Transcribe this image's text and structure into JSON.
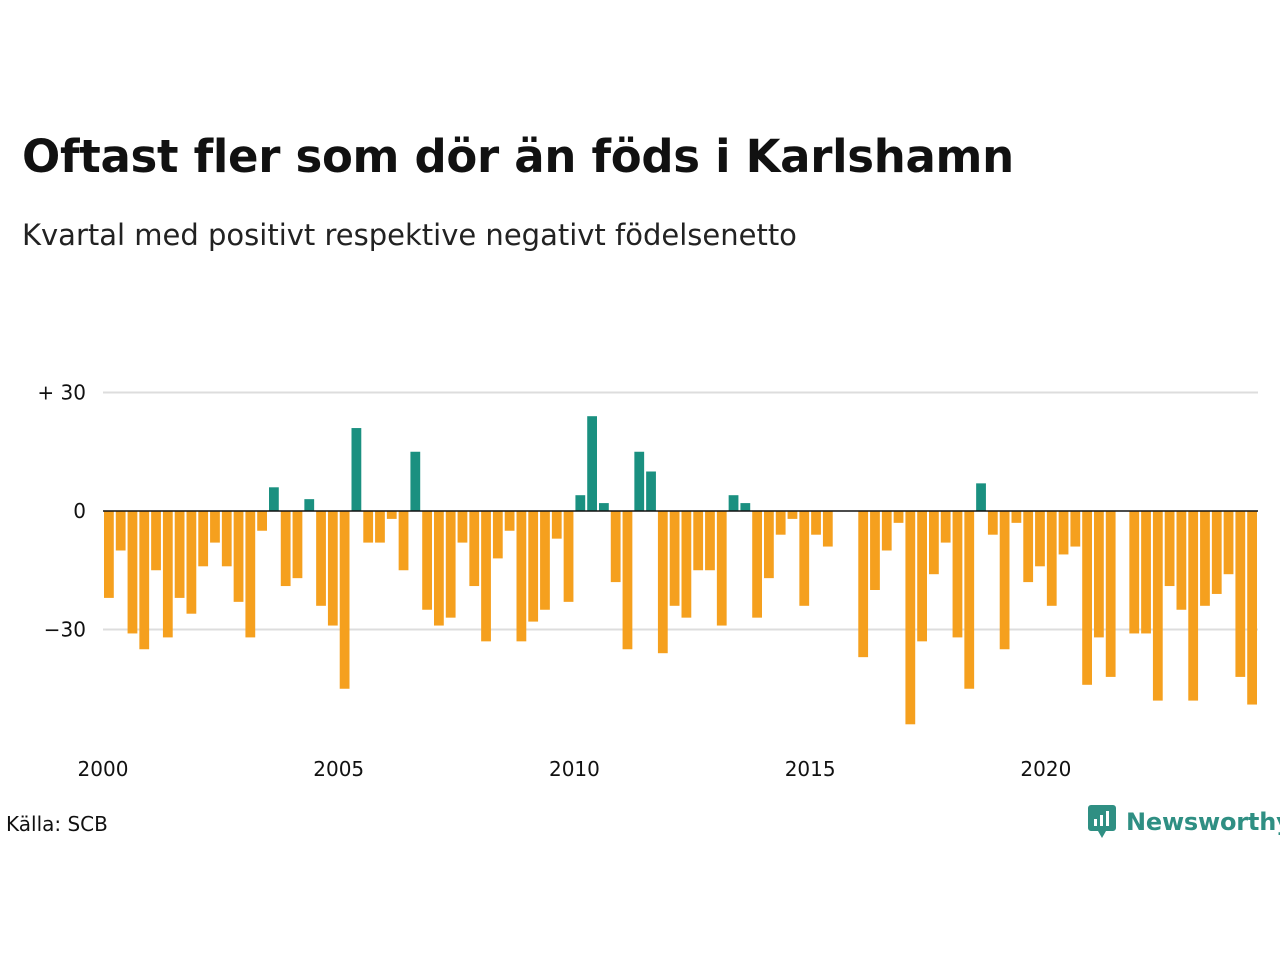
{
  "title": "Oftast fler som dör än föds i Karlshamn",
  "subtitle": "Kvartal med positivt respektive negativt födelsenetto",
  "source": "Källa: SCB",
  "brand": {
    "name": "Newsworthy",
    "color": "#2f8f83"
  },
  "chart_data": {
    "type": "bar",
    "ylim": [
      -53,
      32
    ],
    "yticks": [
      {
        "value": 30,
        "label": "+ 30"
      },
      {
        "value": 0,
        "label": "0"
      },
      {
        "value": -30,
        "label": "−30"
      }
    ],
    "xlim": [
      2000,
      2024.5
    ],
    "xticks": [
      {
        "value": 2000,
        "label": "2000"
      },
      {
        "value": 2005,
        "label": "2005"
      },
      {
        "value": 2010,
        "label": "2010"
      },
      {
        "value": 2015,
        "label": "2015"
      },
      {
        "value": 2020,
        "label": "2020"
      }
    ],
    "start_year": 2000,
    "grid": true,
    "colors": {
      "positive": "#1a9080",
      "negative": "#f5a01e",
      "grid": "#dddddd",
      "zero": "#111111"
    },
    "values": [
      -22,
      -10,
      -31,
      -35,
      -15,
      -32,
      -22,
      -26,
      -14,
      -8,
      -14,
      -23,
      -32,
      -5,
      6,
      -19,
      -17,
      3,
      -24,
      -29,
      -45,
      21,
      -8,
      -8,
      -2,
      -15,
      15,
      -25,
      -29,
      -27,
      -8,
      -19,
      -33,
      -12,
      -5,
      -33,
      -28,
      -25,
      -7,
      -23,
      4,
      24,
      2,
      -18,
      -35,
      15,
      10,
      -36,
      -24,
      -27,
      -15,
      -15,
      -29,
      4,
      2,
      -27,
      -17,
      -6,
      -2,
      -24,
      -6,
      -9,
      0,
      0,
      -37,
      -20,
      -10,
      -3,
      -54,
      -33,
      -16,
      -8,
      -32,
      -45,
      7,
      -6,
      -35,
      -3,
      -18,
      -14,
      -24,
      -11,
      -9,
      -44,
      -32,
      -42,
      0,
      -31,
      -31,
      -48,
      -19,
      -25,
      -48,
      -24,
      -21,
      -16,
      -42,
      -49
    ]
  }
}
